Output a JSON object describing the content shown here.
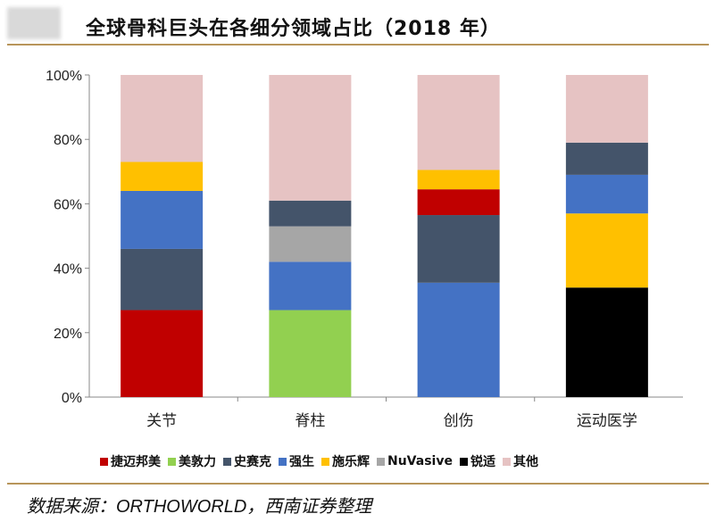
{
  "title": "全球骨科巨头在各细分领域占比（2018 年）",
  "source": "数据来源：ORTHOWORLD，西南证券整理",
  "chart_data": {
    "type": "bar",
    "stacked": true,
    "ylim": [
      0,
      100
    ],
    "yticks": [
      "0%",
      "20%",
      "40%",
      "60%",
      "80%",
      "100%"
    ],
    "legend_position": "bottom",
    "legend": [
      {
        "name": "捷迈邦美",
        "color": "#c00000"
      },
      {
        "name": "美敦力",
        "color": "#92d050"
      },
      {
        "name": "史赛克",
        "color": "#44546a"
      },
      {
        "name": "强生",
        "color": "#4472c4"
      },
      {
        "name": "施乐辉",
        "color": "#ffc000"
      },
      {
        "name": "NuVasive",
        "color": "#a6a6a6"
      },
      {
        "name": "锐适",
        "color": "#000000"
      },
      {
        "name": "其他",
        "color": "#e6c3c3"
      }
    ],
    "categories": [
      {
        "label": "关节",
        "segments": [
          {
            "name": "捷迈邦美",
            "value": 27
          },
          {
            "name": "史赛克",
            "value": 19
          },
          {
            "name": "强生",
            "value": 18
          },
          {
            "name": "施乐辉",
            "value": 9
          },
          {
            "name": "其他",
            "value": 27
          }
        ]
      },
      {
        "label": "脊柱",
        "segments": [
          {
            "name": "美敦力",
            "value": 27
          },
          {
            "name": "强生",
            "value": 15
          },
          {
            "name": "NuVasive",
            "value": 11
          },
          {
            "name": "史赛克",
            "value": 8
          },
          {
            "name": "其他",
            "value": 39
          }
        ]
      },
      {
        "label": "创伤",
        "segments": [
          {
            "name": "强生",
            "value": 35.5
          },
          {
            "name": "史赛克",
            "value": 21
          },
          {
            "name": "捷迈邦美",
            "value": 8
          },
          {
            "name": "施乐辉",
            "value": 6
          },
          {
            "name": "其他",
            "value": 29.5
          }
        ]
      },
      {
        "label": "运动医学",
        "segments": [
          {
            "name": "锐适",
            "value": 34
          },
          {
            "name": "施乐辉",
            "value": 23
          },
          {
            "name": "强生",
            "value": 12
          },
          {
            "name": "史赛克",
            "value": 10
          },
          {
            "name": "其他",
            "value": 21
          }
        ]
      }
    ]
  }
}
